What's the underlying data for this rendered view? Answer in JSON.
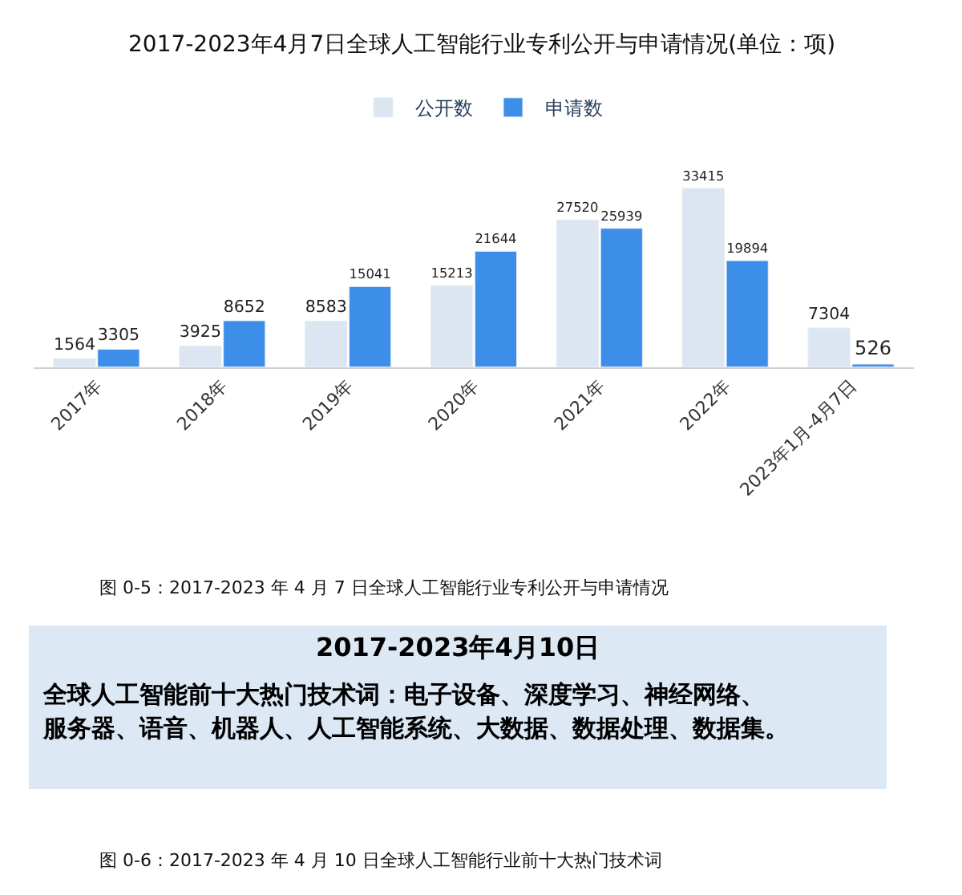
{
  "chart_data": [
    {
      "type": "bar",
      "title": "2017-2023年4月7日全球人工智能行业专利公开与申请情况(单位：项)",
      "categories": [
        "2017年",
        "2018年",
        "2019年",
        "2020年",
        "2021年",
        "2022年",
        "2023年1月-4月7日"
      ],
      "series": [
        {
          "name": "公开数",
          "color": "#dce6f2",
          "values": [
            1564,
            3925,
            8583,
            15213,
            27520,
            33415,
            7304
          ]
        },
        {
          "name": "申请数",
          "color": "#3d8ee8",
          "values": [
            3305,
            8652,
            15041,
            21644,
            25939,
            19894,
            526
          ]
        }
      ],
      "data_labels": true,
      "legend": "top",
      "annotations": [
        "图 0-5：2017-2023 年 4 月 7 日全球人工智能行业专利公开与申请情况"
      ]
    },
    {
      "type": "other",
      "title": "2017-2023年4月10日",
      "annotations": [
        "全球人工智能前十大热门技术词：电子设备、深度学习、神经网络、",
        "服务器、语音、机器人、人工智能系统、大数据、数据处理、数据集。",
        "图 0-6：2017-2023 年 4 月 10 日全球人工智能行业前十大热门技术词"
      ]
    }
  ]
}
